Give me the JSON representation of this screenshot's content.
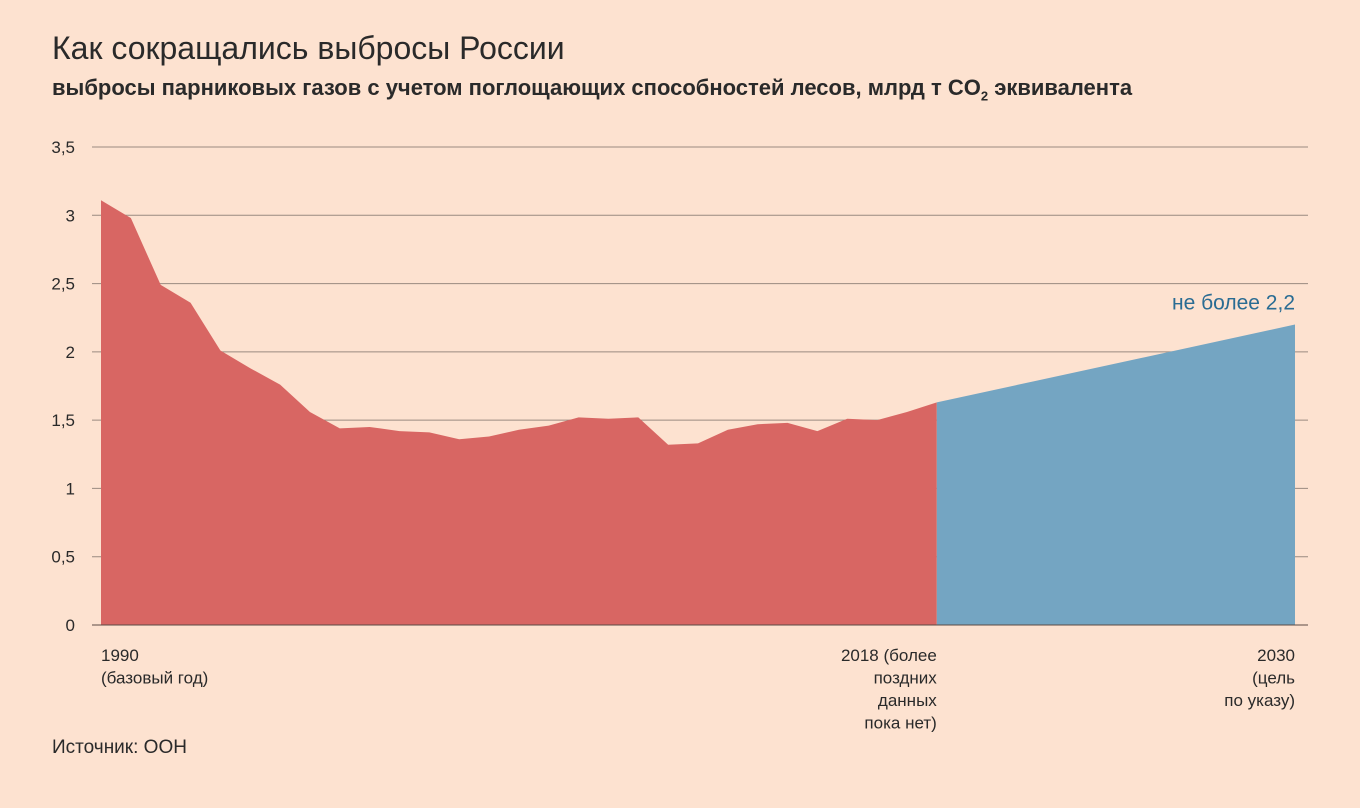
{
  "title": "Как сокращались выбросы России",
  "subtitle": {
    "text": "выбросы парниковых газов с учетом поглощающих способностей лесов, млрд т CO",
    "sub": "2",
    "suffix": " эквивалента"
  },
  "source": "Источник: ООН",
  "chart_data": {
    "type": "area",
    "ylim": [
      0,
      3.5
    ],
    "yticks": [
      0,
      0.5,
      1,
      1.5,
      2,
      2.5,
      3,
      3.5
    ],
    "ytick_labels": [
      "0",
      "0,5",
      "1",
      "1,5",
      "2",
      "2,5",
      "3",
      "3,5"
    ],
    "grid": true,
    "xlim": [
      1990,
      2030
    ],
    "series": [
      {
        "color": "#d86663",
        "x": [
          1990,
          1991,
          1992,
          1993,
          1994,
          1995,
          1996,
          1997,
          1998,
          1999,
          2000,
          2001,
          2002,
          2003,
          2004,
          2005,
          2006,
          2007,
          2008,
          2009,
          2010,
          2011,
          2012,
          2013,
          2014,
          2015,
          2016,
          2017,
          2018
        ],
        "values": [
          3.11,
          2.98,
          2.49,
          2.36,
          2.01,
          1.88,
          1.76,
          1.56,
          1.44,
          1.45,
          1.42,
          1.41,
          1.36,
          1.38,
          1.43,
          1.46,
          1.52,
          1.51,
          1.52,
          1.32,
          1.33,
          1.43,
          1.47,
          1.48,
          1.42,
          1.51,
          1.5,
          1.56,
          1.63
        ]
      },
      {
        "color": "#74a5c2",
        "x": [
          2018,
          2030
        ],
        "values": [
          1.63,
          2.2
        ]
      }
    ],
    "x_labels": [
      {
        "year": 1990,
        "lines": [
          "1990",
          "(базовый год)"
        ],
        "align": "start"
      },
      {
        "year": 2018,
        "lines": [
          "2018 (более",
          "поздних",
          "данных",
          "пока нет)"
        ],
        "align": "end"
      },
      {
        "year": 2030,
        "lines": [
          "2030",
          "(цель",
          "по указу)"
        ],
        "align": "end"
      }
    ],
    "annotation": {
      "text": "не более 2,2",
      "x": 2030,
      "y": 2.2,
      "color": "#2a6c93"
    }
  }
}
